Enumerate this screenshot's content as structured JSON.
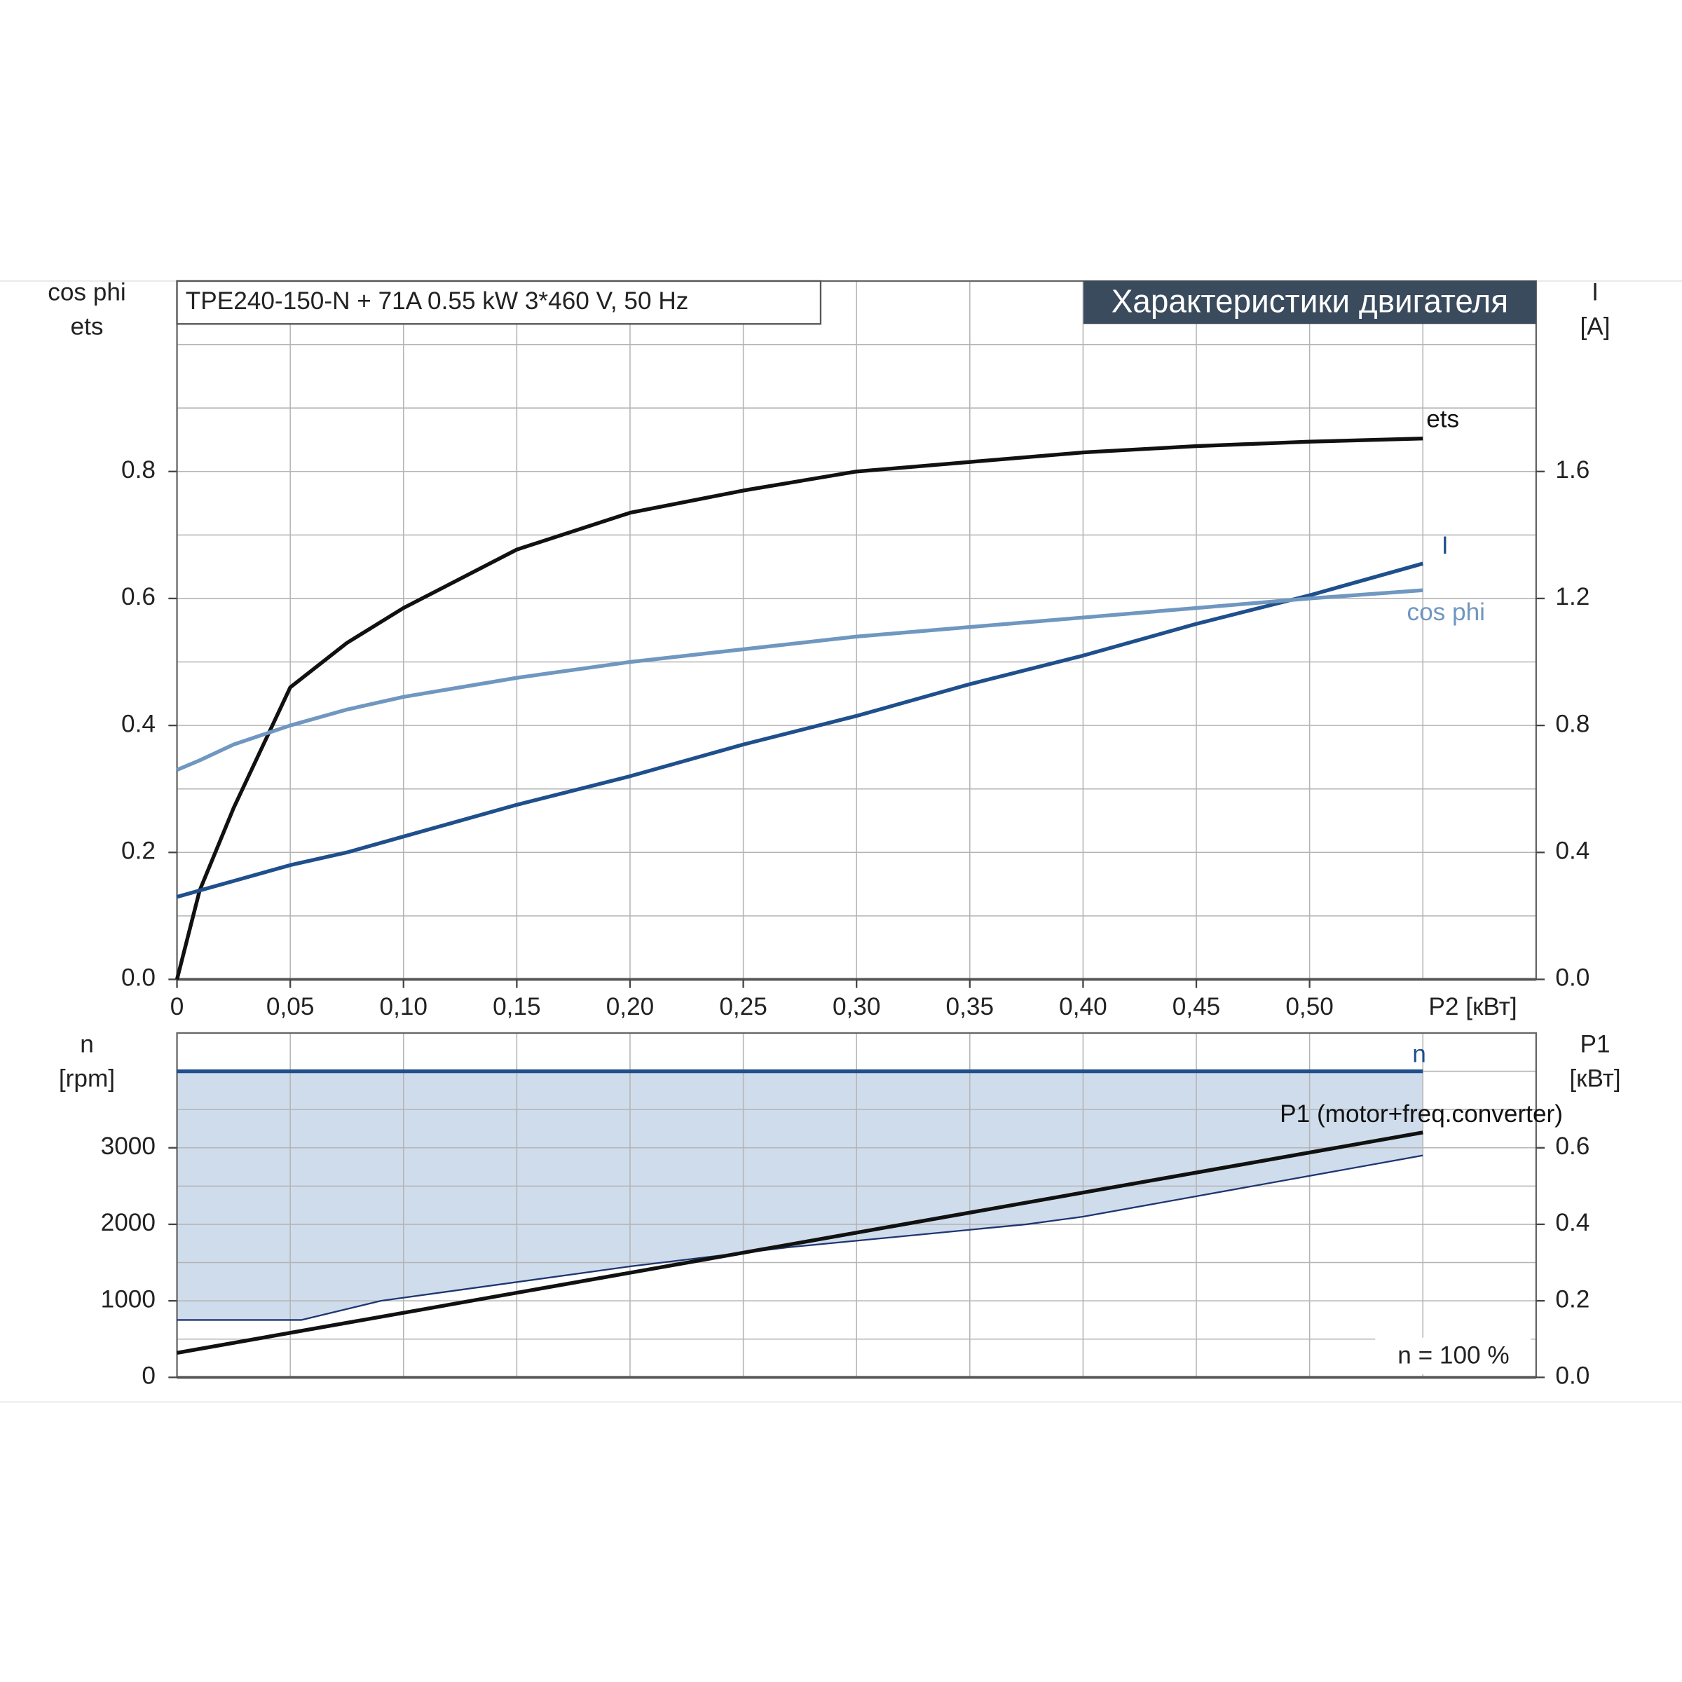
{
  "chart_data": [
    {
      "type": "line",
      "title": "TPE240-150-N + 71A   0.55 kW   3*460 V, 50 Hz",
      "header": "Характеристики двигателя",
      "xlabel": "P2 [кВт]",
      "ylabel": [
        "cos phi",
        "ets"
      ],
      "y2label": [
        "I",
        "[A]"
      ],
      "x": [
        0,
        0.01,
        0.025,
        0.05,
        0.075,
        0.1,
        0.15,
        0.2,
        0.25,
        0.3,
        0.35,
        0.4,
        0.45,
        0.5,
        0.55
      ],
      "series": [
        {
          "name": "ets",
          "color": "#111111",
          "values": [
            0,
            0.14,
            0.27,
            0.46,
            0.53,
            0.585,
            0.677,
            0.735,
            0.77,
            0.8,
            0.815,
            0.83,
            0.84,
            0.847,
            0.852
          ]
        },
        {
          "name": "I",
          "color": "#1f4f8c",
          "axis": "y2",
          "values": [
            0.26,
            0.28,
            0.31,
            0.36,
            0.4,
            0.45,
            0.55,
            0.64,
            0.74,
            0.83,
            0.93,
            1.02,
            1.12,
            1.21,
            1.31
          ]
        },
        {
          "name": "cos phi",
          "color": "#6f97c0",
          "values": [
            0.33,
            0.345,
            0.37,
            0.4,
            0.425,
            0.445,
            0.475,
            0.5,
            0.52,
            0.54,
            0.555,
            0.57,
            0.585,
            0.6,
            0.613
          ]
        }
      ],
      "xlim": [
        0,
        0.6
      ],
      "xticks": [
        0,
        {
          "value": 0.05,
          "label": "0,05"
        },
        {
          "value": 0.1,
          "label": "0,10"
        },
        {
          "value": 0.15,
          "label": "0,15"
        },
        {
          "value": 0.2,
          "label": "0,20"
        },
        {
          "value": 0.25,
          "label": "0,25"
        },
        {
          "value": 0.3,
          "label": "0,30"
        },
        {
          "value": 0.35,
          "label": "0,35"
        },
        {
          "value": 0.4,
          "label": "0,40"
        },
        {
          "value": 0.45,
          "label": "0,45"
        },
        {
          "value": 0.5,
          "label": "0,50"
        }
      ],
      "xminor": [
        0.55
      ],
      "ylim": [
        0,
        1.1
      ],
      "yticks": [
        {
          "value": 0,
          "label": "0.0"
        },
        0.2,
        0.4,
        0.6,
        0.8
      ],
      "yminor": [
        0.1,
        0.3,
        0.5,
        0.7,
        0.9,
        1.0
      ],
      "y2lim": [
        0,
        2.2
      ],
      "y2ticks": [
        {
          "value": 0,
          "label": "0.0"
        },
        0.4,
        0.8,
        1.2,
        1.6
      ],
      "grid": true
    },
    {
      "type": "line",
      "ylabel": [
        "n",
        "[rpm]"
      ],
      "y2label": [
        "P1",
        "[кВт]"
      ],
      "annotation": "n = 100 %",
      "series": [
        {
          "name": "n",
          "color": "#1f4f8c",
          "x": [
            0,
            0.55
          ],
          "values": [
            4000,
            4000
          ],
          "fill": "#cfdcec"
        },
        {
          "color": "#1f3570",
          "axis": "y2",
          "x": [
            0,
            0.055,
            0.09,
            0.2,
            0.27,
            0.375,
            0.4,
            0.55
          ],
          "values": [
            0.15,
            0.15,
            0.2,
            0.29,
            0.34,
            0.4,
            0.42,
            0.58
          ],
          "fill_to": 0,
          "thin": true
        },
        {
          "name": "P1 (motor+freq.converter)",
          "color": "#111111",
          "axis": "y2",
          "x": [
            0,
            0.55
          ],
          "values": [
            0.064,
            0.64
          ]
        }
      ],
      "xlim": [
        0,
        0.6
      ],
      "xminor": [
        0.05,
        0.1,
        0.15,
        0.2,
        0.25,
        0.3,
        0.35,
        0.4,
        0.45,
        0.5,
        0.55
      ],
      "ylim": [
        0,
        4500
      ],
      "yticks": [
        0,
        1000,
        2000,
        3000
      ],
      "yminor": [
        500,
        1500,
        2500,
        3500,
        4000
      ],
      "y2lim": [
        0,
        0.9
      ],
      "y2ticks": [
        {
          "value": 0,
          "label": "0.0"
        },
        0.2,
        0.4,
        0.6
      ],
      "grid": true
    }
  ]
}
